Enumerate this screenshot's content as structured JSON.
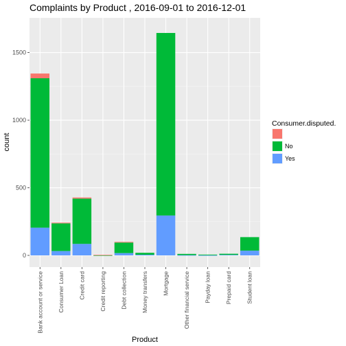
{
  "chart_data": {
    "type": "bar",
    "stacked": true,
    "title": "Complaints by Product , 2016-09-01 to 2016-12-01",
    "xlabel": "Product",
    "ylabel": "count",
    "ylim": [
      0,
      1730
    ],
    "yticks": [
      0,
      500,
      1000,
      1500
    ],
    "grid": true,
    "legend_position": "right",
    "legend_title": "Consumer.disputed.",
    "categories": [
      "Bank account or service",
      "Consumer Loan",
      "Credit card",
      "Credit reporting",
      "Debt collection",
      "Money transfers",
      "Mortgage",
      "Other financial service",
      "Payday loan",
      "Prepaid card",
      "Student loan"
    ],
    "series": [
      {
        "name": "",
        "color": "#F8766D",
        "values": [
          35,
          5,
          8,
          3,
          5,
          0,
          0,
          0,
          0,
          0,
          0
        ]
      },
      {
        "name": "No",
        "color": "#00BA38",
        "values": [
          1105,
          205,
          335,
          1,
          78,
          14,
          1350,
          9,
          5,
          8,
          100
        ]
      },
      {
        "name": "Yes",
        "color": "#619CFF",
        "values": [
          205,
          32,
          85,
          0,
          17,
          5,
          295,
          2,
          1,
          4,
          35
        ]
      }
    ]
  }
}
